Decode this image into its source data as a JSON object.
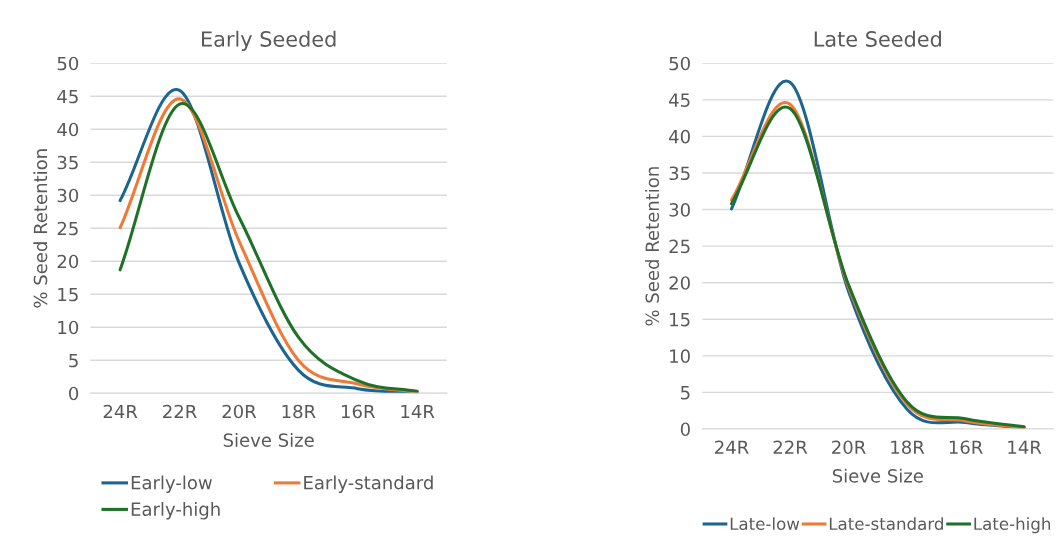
{
  "chart_data": [
    {
      "type": "line",
      "title": "Early Seeded",
      "xlabel": "Sieve Size",
      "ylabel": "% Seed Retention",
      "categories": [
        "24R",
        "22R",
        "20R",
        "18R",
        "16R",
        "14R"
      ],
      "ylim": [
        0,
        50
      ],
      "yticks": [
        0,
        5,
        10,
        15,
        20,
        25,
        30,
        35,
        40,
        45,
        50
      ],
      "grid": "y",
      "legend": "bottom",
      "marker": "none",
      "line_style": "solid",
      "series": [
        {
          "name": "Early-low",
          "color": "#1b6591",
          "values": [
            29.2,
            45.9,
            19.8,
            3.5,
            0.7,
            0.1
          ]
        },
        {
          "name": "Early-standard",
          "color": "#f07a35",
          "values": [
            25.1,
            44.6,
            23.1,
            5.0,
            1.4,
            0.2
          ]
        },
        {
          "name": "Early-high",
          "color": "#1e7228",
          "values": [
            18.7,
            43.8,
            26.7,
            8.5,
            1.9,
            0.3
          ]
        }
      ]
    },
    {
      "type": "line",
      "title": "Late Seeded",
      "xlabel": "Sieve Size",
      "ylabel": "% Seed Retention",
      "categories": [
        "24R",
        "22R",
        "20R",
        "18R",
        "16R",
        "14R"
      ],
      "ylim": [
        0,
        50
      ],
      "yticks": [
        0,
        5,
        10,
        15,
        20,
        25,
        30,
        35,
        40,
        45,
        50
      ],
      "grid": "y",
      "legend": "bottom",
      "marker": "none",
      "line_style": "solid",
      "series": [
        {
          "name": "Late-low",
          "color": "#1b6591",
          "values": [
            30.1,
            47.4,
            18.8,
            2.7,
            0.9,
            0.2
          ]
        },
        {
          "name": "Late-standard",
          "color": "#f07a35",
          "values": [
            31.3,
            44.4,
            19.4,
            3.4,
            1.1,
            0.2
          ]
        },
        {
          "name": "Late-high",
          "color": "#1e7228",
          "values": [
            30.8,
            43.8,
            19.7,
            3.7,
            1.4,
            0.3
          ]
        }
      ]
    }
  ]
}
